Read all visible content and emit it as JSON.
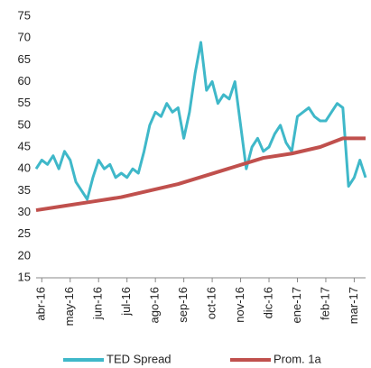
{
  "chart_data": {
    "type": "line",
    "series": [
      {
        "name": "TED Spread",
        "color": "#3fb8c9",
        "x": [
          -0.2,
          0,
          0.2,
          0.4,
          0.6,
          0.8,
          1,
          1.2,
          1.4,
          1.6,
          1.8,
          2,
          2.2,
          2.4,
          2.6,
          2.8,
          3,
          3.2,
          3.4,
          3.6,
          3.8,
          4,
          4.2,
          4.4,
          4.6,
          4.8,
          5,
          5.2,
          5.4,
          5.6,
          5.8,
          6,
          6.2,
          6.4,
          6.6,
          6.8,
          7,
          7.2,
          7.4,
          7.6,
          7.8,
          8,
          8.2,
          8.4,
          8.6,
          8.8,
          9,
          9.2,
          9.4,
          9.6,
          9.8,
          10,
          10.2,
          10.4,
          10.6,
          10.8,
          11,
          11.2,
          11.4
        ],
        "values": [
          40,
          42,
          41,
          43,
          40,
          44,
          42,
          37,
          35,
          33,
          38,
          42,
          40,
          41,
          38,
          39,
          38,
          40,
          39,
          44,
          50,
          53,
          52,
          55,
          53,
          54,
          47,
          53,
          62,
          69,
          58,
          60,
          55,
          57,
          56,
          60,
          50,
          40,
          45,
          47,
          44,
          45,
          48,
          50,
          46,
          44,
          52,
          53,
          54,
          52,
          51,
          51,
          53,
          55,
          54,
          36,
          38,
          42,
          38
        ]
      },
      {
        "name": "Prom. 1a",
        "color": "#c0504d",
        "x": [
          -0.2,
          0.8,
          1.8,
          2.8,
          3.8,
          4.8,
          5.8,
          6.8,
          7.8,
          8.8,
          9.8,
          10.6,
          11.4
        ],
        "values": [
          30.5,
          31.5,
          32.5,
          33.5,
          35,
          36.5,
          38.5,
          40.5,
          42.5,
          43.5,
          45,
          47,
          47
        ]
      }
    ],
    "xlim": [
      -0.2,
      11.4
    ],
    "xticks": [
      {
        "value": 0,
        "label": "abr-16"
      },
      {
        "value": 1,
        "label": "may-16"
      },
      {
        "value": 2,
        "label": "jun-16"
      },
      {
        "value": 3,
        "label": "jul-16"
      },
      {
        "value": 4,
        "label": "ago-16"
      },
      {
        "value": 5,
        "label": "sep-16"
      },
      {
        "value": 6,
        "label": "oct-16"
      },
      {
        "value": 7,
        "label": "nov-16"
      },
      {
        "value": 8,
        "label": "dic-16"
      },
      {
        "value": 9,
        "label": "ene-17"
      },
      {
        "value": 10,
        "label": "feb-17"
      },
      {
        "value": 11,
        "label": "mar-17"
      }
    ],
    "ylim": [
      15,
      75
    ],
    "yticks": [
      15,
      20,
      25,
      30,
      35,
      40,
      45,
      50,
      55,
      60,
      65,
      70,
      75
    ]
  }
}
